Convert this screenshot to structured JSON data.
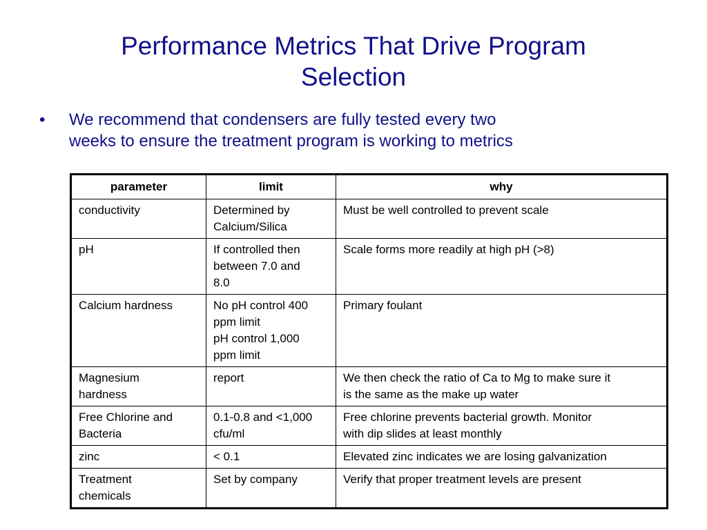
{
  "title_lines": [
    "Performance Metrics That Drive Program",
    "Selection"
  ],
  "bullets": [
    {
      "mark": "•",
      "lines": [
        "We recommend that condensers are fully tested every two",
        "weeks to ensure the treatment program is working to metrics"
      ]
    }
  ],
  "table": {
    "headers": [
      "parameter",
      "limit",
      "why"
    ],
    "rows": [
      {
        "parameter": [
          "conductivity"
        ],
        "limit": [
          "Determined by",
          "Calcium/Silica"
        ],
        "why": [
          "Must be well controlled to prevent scale"
        ]
      },
      {
        "parameter": [
          "pH"
        ],
        "limit": [
          "If controlled then",
          "between 7.0 and",
          "8.0"
        ],
        "why": [
          "Scale forms more readily at high pH (>8)"
        ]
      },
      {
        "parameter": [
          "Calcium hardness"
        ],
        "limit": [
          "No pH control 400",
          "ppm limit",
          "pH control 1,000",
          "ppm limit"
        ],
        "why": [
          "Primary foulant"
        ]
      },
      {
        "parameter": [
          "Magnesium",
          "hardness"
        ],
        "limit": [
          "report"
        ],
        "why": [
          "We then check the ratio of Ca to Mg to make sure it",
          "is the same as the make up water"
        ]
      },
      {
        "parameter": [
          "Free Chlorine and",
          "Bacteria"
        ],
        "limit": [
          "0.1-0.8 and <1,000",
          "cfu/ml"
        ],
        "why": [
          "Free chlorine prevents bacterial growth.  Monitor",
          "with dip slides at least monthly"
        ]
      },
      {
        "parameter": [
          "zinc"
        ],
        "limit": [
          "< 0.1"
        ],
        "why": [
          "Elevated zinc indicates we are losing galvanization"
        ]
      },
      {
        "parameter": [
          "Treatment",
          "chemicals"
        ],
        "limit": [
          "Set by company"
        ],
        "why": [
          "Verify that proper treatment levels are present"
        ]
      }
    ]
  }
}
